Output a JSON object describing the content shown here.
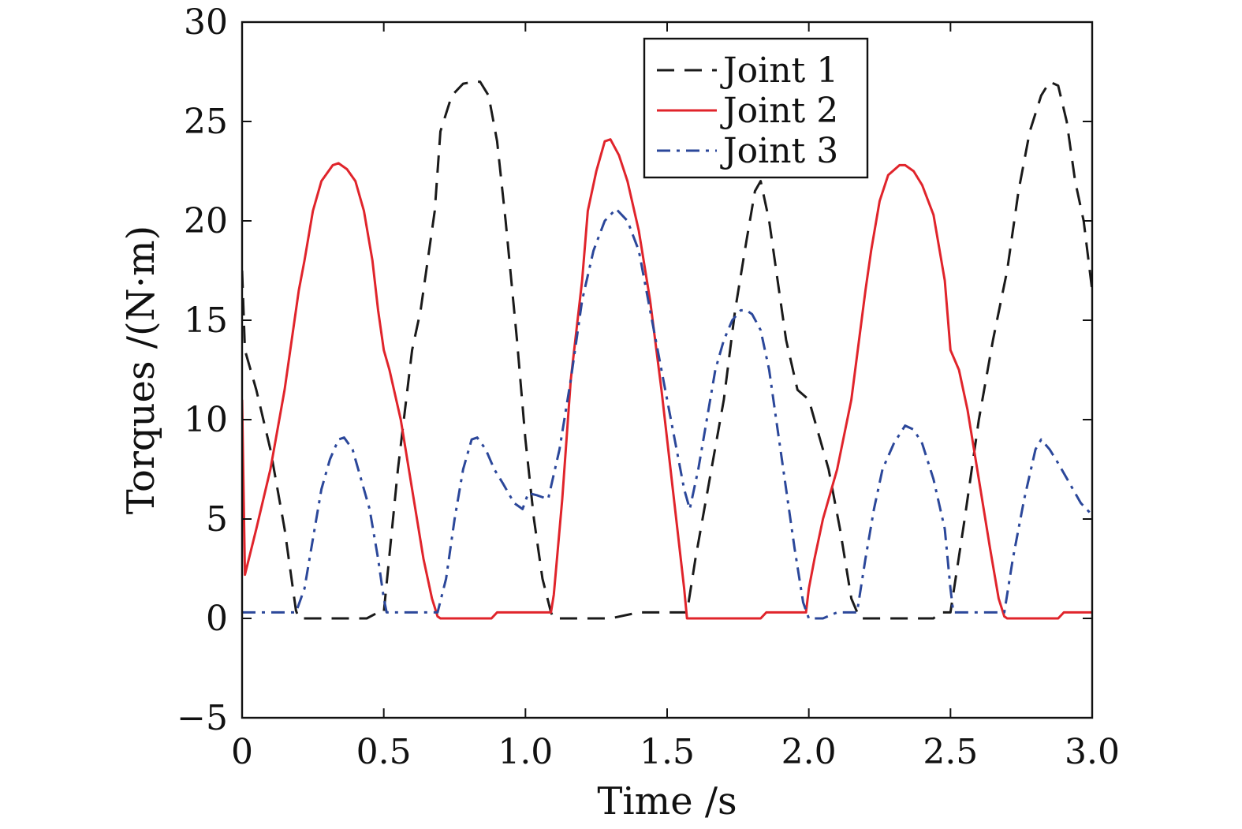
{
  "chart_data": {
    "type": "line",
    "title": "",
    "xlabel": "Time /s",
    "ylabel": "Torques /(N·m)",
    "xlim": [
      0,
      3.0
    ],
    "ylim": [
      -5,
      30
    ],
    "x_ticks": [
      0,
      0.5,
      1.0,
      1.5,
      2.0,
      2.5,
      3.0
    ],
    "x_tick_labels": [
      "0",
      "0.5",
      "1.0",
      "1.5",
      "2.0",
      "2.5",
      "3.0"
    ],
    "y_ticks": [
      -5,
      0,
      5,
      10,
      15,
      20,
      25,
      30
    ],
    "y_tick_labels": [
      "−5",
      "0",
      "5",
      "10",
      "15",
      "20",
      "25",
      "30"
    ],
    "grid": false,
    "legend_position": "top-right",
    "series": [
      {
        "name": "Joint 1",
        "color": "#1a1a1a",
        "dash": "dashed",
        "x": [
          0,
          0.01,
          0.05,
          0.1,
          0.15,
          0.19,
          0.2,
          0.3,
          0.44,
          0.48,
          0.5,
          0.55,
          0.6,
          0.63,
          0.68,
          0.7,
          0.74,
          0.78,
          0.82,
          0.84,
          0.87,
          0.9,
          0.93,
          0.97,
          1.0,
          1.03,
          1.06,
          1.09,
          1.1,
          1.2,
          1.3,
          1.4,
          1.57,
          1.6,
          1.65,
          1.7,
          1.74,
          1.78,
          1.81,
          1.83,
          1.86,
          1.89,
          1.92,
          1.96,
          2.0,
          2.03,
          2.07,
          2.11,
          2.15,
          2.18,
          2.2,
          2.3,
          2.44,
          2.46,
          2.5,
          2.55,
          2.6,
          2.65,
          2.7,
          2.74,
          2.78,
          2.82,
          2.85,
          2.88,
          2.91,
          2.94,
          2.97,
          3.0
        ],
        "y": [
          17.5,
          13.5,
          11.5,
          8.5,
          4.5,
          0.4,
          0,
          0,
          0,
          0.3,
          0.3,
          7.5,
          13.5,
          15.5,
          20.5,
          24.5,
          26.3,
          26.9,
          27.0,
          27.0,
          26.3,
          24.0,
          20.0,
          14.0,
          9.0,
          5.0,
          2.0,
          0.3,
          0,
          0,
          0,
          0.3,
          0.3,
          3.0,
          7.0,
          11.0,
          15.5,
          19.0,
          21.5,
          22.0,
          20.0,
          17.0,
          14.0,
          11.5,
          11.0,
          9.5,
          7.5,
          4.5,
          1.0,
          0,
          0,
          0,
          0,
          0.3,
          0.3,
          5.0,
          10.0,
          14.0,
          17.5,
          21.5,
          24.5,
          26.3,
          27.0,
          26.8,
          25.0,
          22.0,
          20.0,
          16.5
        ]
      },
      {
        "name": "Joint 2",
        "color": "#e0242b",
        "dash": "solid",
        "x": [
          0,
          0.01,
          0.05,
          0.1,
          0.15,
          0.2,
          0.22,
          0.25,
          0.28,
          0.32,
          0.34,
          0.37,
          0.4,
          0.43,
          0.46,
          0.48,
          0.5,
          0.52,
          0.56,
          0.6,
          0.64,
          0.67,
          0.69,
          0.7,
          0.8,
          0.88,
          0.9,
          1.0,
          1.09,
          1.1,
          1.13,
          1.16,
          1.2,
          1.22,
          1.25,
          1.28,
          1.3,
          1.33,
          1.36,
          1.4,
          1.44,
          1.48,
          1.52,
          1.56,
          1.57,
          1.6,
          1.7,
          1.83,
          1.85,
          1.9,
          1.99,
          2.0,
          2.02,
          2.05,
          2.1,
          2.15,
          2.2,
          2.22,
          2.25,
          2.28,
          2.32,
          2.34,
          2.37,
          2.4,
          2.44,
          2.48,
          2.5,
          2.53,
          2.56,
          2.6,
          2.64,
          2.67,
          2.69,
          2.7,
          2.8,
          2.88,
          2.9,
          3.0
        ],
        "y": [
          11.0,
          2.2,
          4.5,
          7.5,
          11.5,
          16.5,
          18.0,
          20.5,
          22.0,
          22.8,
          22.9,
          22.6,
          22.0,
          20.5,
          18.0,
          15.5,
          13.5,
          12.5,
          10.0,
          6.5,
          3.0,
          1.0,
          0.1,
          0,
          0,
          0,
          0.3,
          0.3,
          0.3,
          1.2,
          6.0,
          12.0,
          17.0,
          20.5,
          22.5,
          24.0,
          24.1,
          23.3,
          22.0,
          19.5,
          16.0,
          11.5,
          6.5,
          1.5,
          0,
          0,
          0,
          0,
          0.3,
          0.3,
          0.3,
          1.5,
          3.0,
          5.0,
          7.5,
          11.0,
          16.5,
          18.5,
          21.0,
          22.3,
          22.8,
          22.8,
          22.5,
          21.8,
          20.3,
          17.0,
          13.5,
          12.5,
          10.5,
          7.0,
          3.5,
          1.0,
          0.1,
          0,
          0,
          0,
          0.3,
          0.3
        ]
      },
      {
        "name": "Joint 3",
        "color": "#2b479a",
        "dash": "dashdot",
        "x": [
          0,
          0.1,
          0.19,
          0.22,
          0.25,
          0.28,
          0.31,
          0.34,
          0.36,
          0.39,
          0.42,
          0.45,
          0.48,
          0.5,
          0.51,
          0.53,
          0.6,
          0.69,
          0.72,
          0.75,
          0.78,
          0.81,
          0.83,
          0.86,
          0.89,
          0.92,
          0.96,
          0.99,
          1.01,
          1.04,
          1.08,
          1.12,
          1.16,
          1.2,
          1.24,
          1.28,
          1.32,
          1.36,
          1.4,
          1.44,
          1.48,
          1.52,
          1.56,
          1.58,
          1.61,
          1.64,
          1.67,
          1.7,
          1.73,
          1.76,
          1.78,
          1.8,
          1.83,
          1.86,
          1.89,
          1.92,
          1.95,
          1.98,
          2.0,
          2.05,
          2.1,
          2.17,
          2.2,
          2.23,
          2.26,
          2.3,
          2.34,
          2.37,
          2.4,
          2.44,
          2.48,
          2.5,
          2.51,
          2.55,
          2.69,
          2.72,
          2.76,
          2.8,
          2.82,
          2.85,
          2.88,
          2.92,
          2.96,
          3.0
        ],
        "y": [
          0.3,
          0.3,
          0.3,
          1.5,
          4.0,
          6.5,
          8.0,
          9.0,
          9.1,
          8.5,
          7.0,
          5.5,
          3.0,
          1.0,
          0.3,
          0.3,
          0.3,
          0.3,
          2.0,
          5.0,
          7.5,
          9.0,
          9.1,
          8.5,
          7.5,
          6.8,
          5.8,
          5.5,
          6.3,
          6.2,
          6.0,
          8.5,
          12.0,
          16.0,
          18.5,
          20.0,
          20.6,
          20.0,
          18.5,
          15.5,
          12.5,
          9.5,
          6.5,
          5.5,
          7.5,
          10.0,
          12.5,
          14.0,
          15.0,
          15.5,
          15.5,
          15.3,
          14.5,
          12.5,
          9.5,
          6.5,
          3.5,
          0.8,
          0,
          0,
          0.3,
          0.3,
          3.0,
          5.5,
          7.5,
          8.8,
          9.7,
          9.5,
          8.8,
          7.0,
          4.5,
          1.5,
          0.3,
          0.3,
          0.3,
          3.0,
          6.0,
          8.5,
          9.0,
          8.5,
          7.8,
          6.8,
          5.8,
          5.2
        ]
      }
    ]
  }
}
